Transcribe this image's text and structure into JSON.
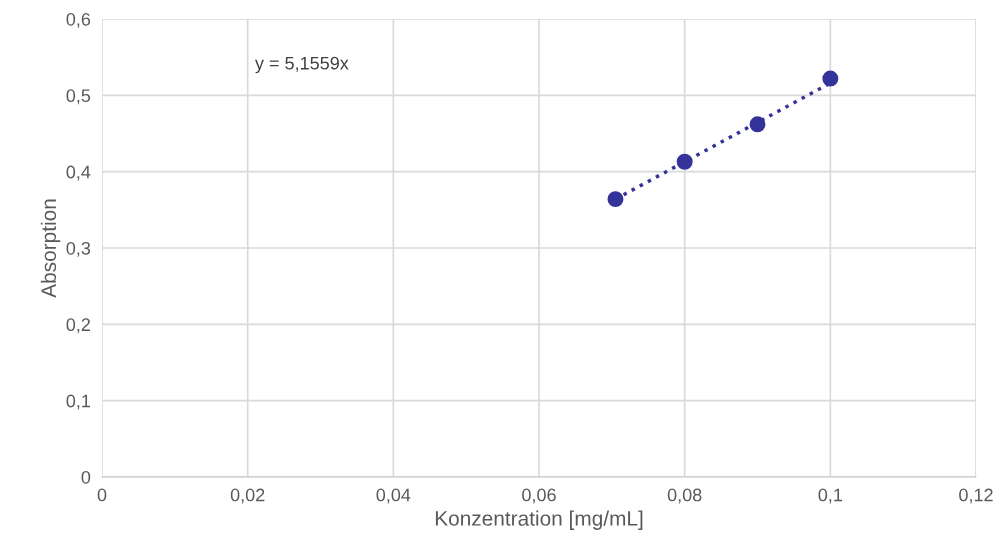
{
  "chart_data": {
    "type": "scatter",
    "xlabel": "Konzentration [mg/mL]",
    "ylabel": "Absorption",
    "annotations": [
      "y = 5,1559x"
    ],
    "series": [
      {
        "color": "#333399",
        "marker": "circle",
        "x": [
          0.0705,
          0.08,
          0.09,
          0.1
        ],
        "values": [
          0.364,
          0.413,
          0.462,
          0.522
        ]
      },
      {
        "type": "line",
        "color": "#333399",
        "marker": "none",
        "line_style": "dotted",
        "x": [
          0.0705,
          0.1
        ],
        "values": [
          0.364,
          0.516
        ]
      }
    ],
    "xlim": [
      0,
      0.12
    ],
    "ylim": [
      0,
      0.6
    ],
    "xticks": [
      0,
      {
        "value": 0.02,
        "label": "0,02"
      },
      {
        "value": 0.04,
        "label": "0,04"
      },
      {
        "value": 0.06,
        "label": "0,06"
      },
      {
        "value": 0.08,
        "label": "0,08"
      },
      {
        "value": 0.1,
        "label": "0,1"
      },
      {
        "value": 0.12,
        "label": "0,12"
      }
    ],
    "yticks": [
      0,
      {
        "value": 0.1,
        "label": "0,1"
      },
      {
        "value": 0.2,
        "label": "0,2"
      },
      {
        "value": 0.3,
        "label": "0,3"
      },
      {
        "value": 0.4,
        "label": "0,4"
      },
      {
        "value": 0.5,
        "label": "0,5"
      },
      {
        "value": 0.6,
        "label": "0,6"
      }
    ],
    "grid": true,
    "legend": false
  }
}
